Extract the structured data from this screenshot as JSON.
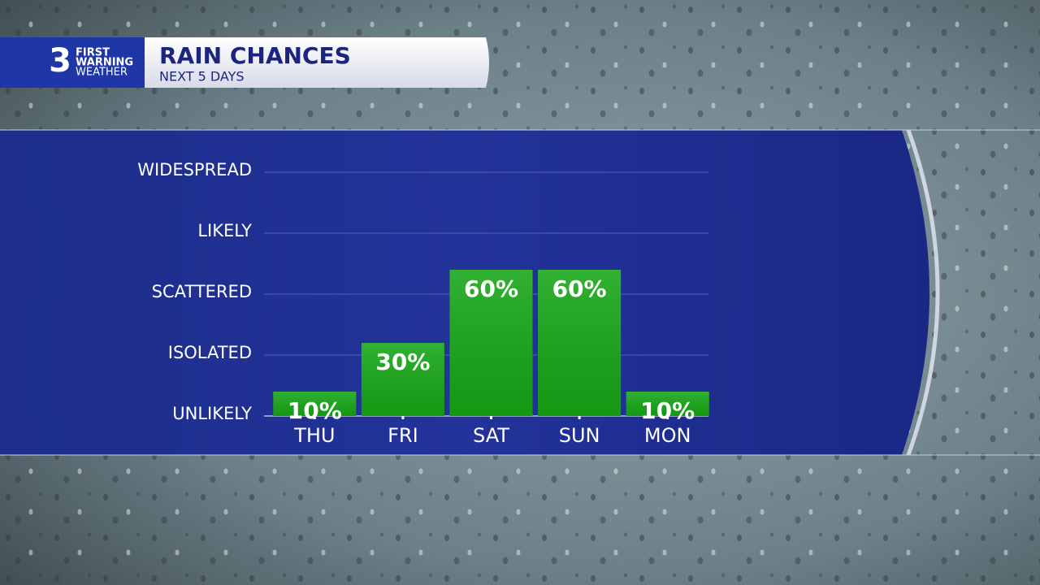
{
  "logo": {
    "number": "3",
    "line1": "FIRST",
    "line2": "WARNING",
    "line3": "WEATHER"
  },
  "chart_data": {
    "type": "bar",
    "title": "RAIN CHANCES",
    "subtitle": "NEXT 5 DAYS",
    "categories": [
      "THU",
      "FRI",
      "SAT",
      "SUN",
      "MON"
    ],
    "values": [
      10,
      30,
      60,
      60,
      10
    ],
    "value_labels": [
      "10%",
      "30%",
      "60%",
      "60%",
      "10%"
    ],
    "color": "#16a616",
    "ylim": [
      0,
      100
    ],
    "yticks": [
      {
        "value": 0,
        "label": "UNLIKELY"
      },
      {
        "value": 25,
        "label": "ISOLATED"
      },
      {
        "value": 50,
        "label": "SCATTERED"
      },
      {
        "value": 75,
        "label": "LIKELY"
      },
      {
        "value": 100,
        "label": "WIDESPREAD"
      }
    ],
    "grid": true
  }
}
